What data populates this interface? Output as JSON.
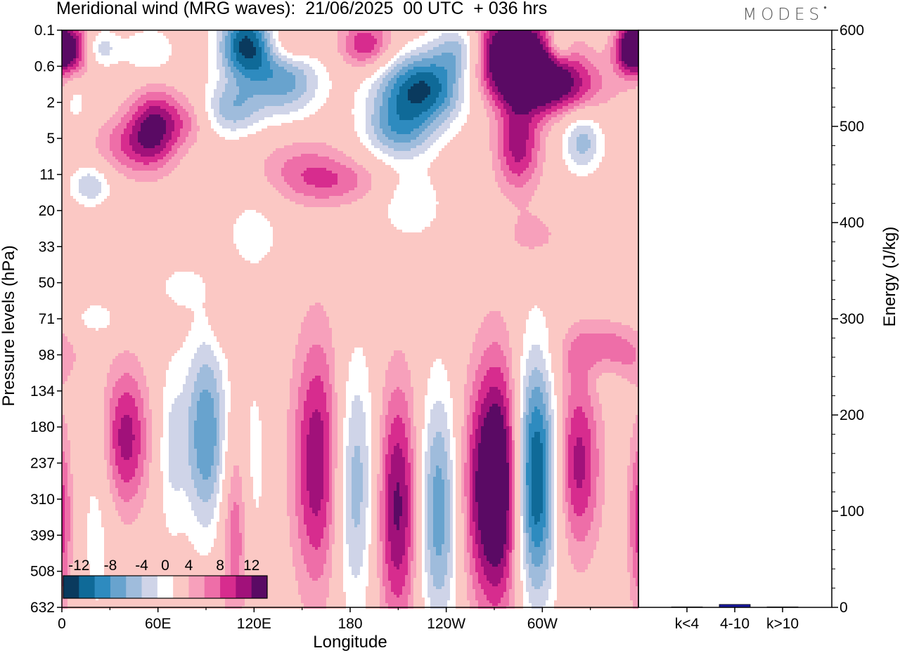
{
  "title": "Meridional wind (MRG waves):  21/06/2025  00 UTC  + 036 hrs",
  "logo": "MODES",
  "colors": {
    "neg": [
      "#0a3a5e",
      "#0f6a98",
      "#2e8bbf",
      "#68a3ce",
      "#9fbcdc",
      "#cfd4e8"
    ],
    "pos": [
      "#fbc8c4",
      "#f7a0bb",
      "#ee6ea8",
      "#d72c8e",
      "#a1117a",
      "#5a0a64"
    ],
    "bar": "#1a1aa0"
  },
  "chart_data": [
    {
      "type": "heatmap",
      "title": "Meridional wind (MRG waves):  21/06/2025  00 UTC  + 036 hrs",
      "xlabel": "Longitude",
      "ylabel": "Pressure levels (hPa)",
      "x_ticks": [
        "0",
        "60E",
        "120E",
        "180",
        "120W",
        "60W"
      ],
      "y_ticks": [
        "0.1",
        "0.6",
        "2",
        "5",
        "11",
        "20",
        "33",
        "50",
        "71",
        "98",
        "134",
        "180",
        "237",
        "310",
        "399",
        "508",
        "632"
      ],
      "colorbar_labels": [
        "-12",
        "-8",
        "-4",
        "0",
        "4",
        "8",
        "12"
      ],
      "colorbar_levels": [
        -14,
        -12,
        -10,
        -8,
        -6,
        -4,
        -2,
        2,
        4,
        6,
        8,
        10,
        12,
        14
      ],
      "features": [
        {
          "lon": 8,
          "lev": 0.5,
          "v": 12,
          "sx": 10,
          "sy": 0.5
        },
        {
          "lon": 21,
          "lev": 0.5,
          "v": -8,
          "sx": 9,
          "sy": 0.4
        },
        {
          "lon": 55,
          "lev": 0.6,
          "v": -4,
          "sx": 12,
          "sy": 0.5
        },
        {
          "lon": 58,
          "lev": 2.7,
          "v": 10,
          "sx": 11,
          "sy": 0.75
        },
        {
          "lon": 40,
          "lev": 3.2,
          "v": 5,
          "sx": 14,
          "sy": 0.6
        },
        {
          "lon": 80,
          "lev": 2.5,
          "v": 4,
          "sx": 10,
          "sy": 0.5
        },
        {
          "lon": 9,
          "lev": 2.0,
          "v": -3,
          "sx": 5,
          "sy": 0.5
        },
        {
          "lon": 18,
          "lev": 4.3,
          "v": -6,
          "sx": 9,
          "sy": 0.4
        },
        {
          "lon": 115,
          "lev": 0.4,
          "v": -14,
          "sx": 12,
          "sy": 0.7
        },
        {
          "lon": 140,
          "lev": 1.3,
          "v": -9,
          "sx": 16,
          "sy": 0.8
        },
        {
          "lon": 105,
          "lev": 2.2,
          "v": -7,
          "sx": 14,
          "sy": 0.55
        },
        {
          "lon": 150,
          "lev": 3.8,
          "v": 4,
          "sx": 22,
          "sy": 0.7
        },
        {
          "lon": 142,
          "lev": 0.4,
          "v": 6,
          "sx": 12,
          "sy": 0.45
        },
        {
          "lon": 190,
          "lev": 0.4,
          "v": 8,
          "sx": 12,
          "sy": 0.5
        },
        {
          "lon": 225,
          "lev": 1.6,
          "v": -14,
          "sx": 20,
          "sy": 0.7
        },
        {
          "lon": 210,
          "lev": 2.8,
          "v": -8,
          "sx": 16,
          "sy": 0.6
        },
        {
          "lon": 218,
          "lev": 4.8,
          "v": -4,
          "sx": 14,
          "sy": 0.7
        },
        {
          "lon": 250,
          "lev": 0.5,
          "v": -9,
          "sx": 12,
          "sy": 0.55
        },
        {
          "lon": 280,
          "lev": 0.5,
          "v": 15,
          "sx": 20,
          "sy": 0.7
        },
        {
          "lon": 300,
          "lev": 1.5,
          "v": 13,
          "sx": 24,
          "sy": 0.6
        },
        {
          "lon": 285,
          "lev": 3.2,
          "v": 9,
          "sx": 10,
          "sy": 0.9
        },
        {
          "lon": 325,
          "lev": 3.1,
          "v": -7,
          "sx": 9,
          "sy": 0.6
        },
        {
          "lon": 310,
          "lev": 0.4,
          "v": -6,
          "sx": 6,
          "sy": 0.4
        },
        {
          "lon": 355,
          "lev": 0.5,
          "v": 11,
          "sx": 7,
          "sy": 0.5
        },
        {
          "lon": 172,
          "lev": 4.2,
          "v": 4,
          "sx": 22,
          "sy": 0.45
        },
        {
          "lon": 120,
          "lev": 5.6,
          "v": -3,
          "sx": 14,
          "sy": 0.9
        },
        {
          "lon": 295,
          "lev": 5.7,
          "v": 3,
          "sx": 12,
          "sy": 0.5
        },
        {
          "lon": 22,
          "lev": 8.0,
          "v": -3,
          "sx": 12,
          "sy": 0.4
        },
        {
          "lon": 100,
          "lev": 7.8,
          "v": 3,
          "sx": 5,
          "sy": 0.6
        },
        {
          "lon": 75,
          "lev": 7.1,
          "v": -3,
          "sx": 10,
          "sy": 0.4
        },
        {
          "lon": 340,
          "lev": 9.0,
          "v": 7,
          "sx": 18,
          "sy": 0.6
        },
        {
          "lon": 337,
          "lev": 9.4,
          "v": -4,
          "sx": 10,
          "sy": 0.5
        },
        {
          "lon": 40,
          "lev": 11.3,
          "v": 9,
          "sx": 10,
          "sy": 1.4
        },
        {
          "lon": 68,
          "lev": 11.6,
          "v": -4,
          "sx": 6,
          "sy": 1.8
        },
        {
          "lon": 90,
          "lev": 11.2,
          "v": -10,
          "sx": 10,
          "sy": 1.9
        },
        {
          "lon": 120,
          "lev": 12.0,
          "v": -3,
          "sx": 6,
          "sy": 2.0
        },
        {
          "lon": 160,
          "lev": 12.0,
          "v": 10,
          "sx": 11,
          "sy": 2.5
        },
        {
          "lon": 183,
          "lev": 12.6,
          "v": -8,
          "sx": 10,
          "sy": 2.5
        },
        {
          "lon": 210,
          "lev": 13.2,
          "v": 11,
          "sx": 10,
          "sy": 2.4
        },
        {
          "lon": 235,
          "lev": 13.3,
          "v": -10,
          "sx": 10,
          "sy": 2.4
        },
        {
          "lon": 255,
          "lev": 12.8,
          "v": 4,
          "sx": 9,
          "sy": 2.2
        },
        {
          "lon": 273,
          "lev": 12.6,
          "v": 16,
          "sx": 11,
          "sy": 2.4
        },
        {
          "lon": 295,
          "lev": 12.4,
          "v": -16,
          "sx": 10,
          "sy": 2.4
        },
        {
          "lon": 322,
          "lev": 12.0,
          "v": 9,
          "sx": 10,
          "sy": 1.8
        },
        {
          "lon": 22,
          "lev": 13.8,
          "v": -3,
          "sx": 7,
          "sy": 2.2
        },
        {
          "lon": 0,
          "lev": 13.5,
          "v": 3,
          "sx": 4,
          "sy": 1.8
        },
        {
          "lon": 108,
          "lev": 13.8,
          "v": 6,
          "sx": 6,
          "sy": 2.0
        },
        {
          "lon": 360,
          "lev": 13.6,
          "v": 4,
          "sx": 5,
          "sy": 1.8
        }
      ]
    },
    {
      "type": "bar",
      "ylabel": "Energy (J/kg)",
      "ylim": [
        0,
        600
      ],
      "y_ticks": [
        "0",
        "100",
        "200",
        "300",
        "400",
        "500",
        "600"
      ],
      "categories": [
        "k<4",
        "4-10",
        "k>10"
      ],
      "values": [
        0.5,
        3,
        0.5
      ]
    }
  ]
}
